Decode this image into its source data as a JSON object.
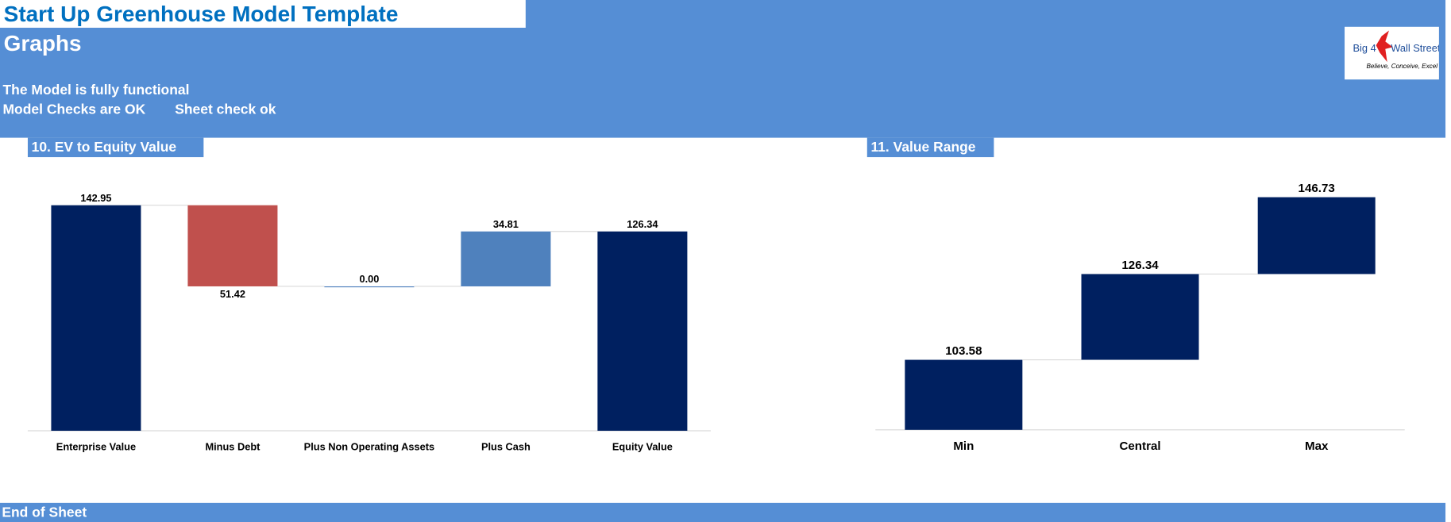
{
  "header": {
    "title": "Start Up Greenhouse Model Template",
    "subtitle": "Graphs",
    "status": "The Model is fully functional",
    "checks": "Model Checks are OK",
    "sheet_check": "Sheet check ok",
    "logo": {
      "left": "Big 4",
      "right": "Wall Street",
      "tagline": "Believe, Conceive, Excel"
    }
  },
  "chart_data": [
    {
      "type": "waterfall",
      "title": "10. EV to Equity Value",
      "categories": [
        "Enterprise Value",
        "Minus Debt",
        "Plus Non Operating Assets",
        "Plus Cash",
        "Equity Value"
      ],
      "values": [
        142.95,
        51.42,
        0,
        34.81,
        126.34
      ],
      "value_labels": [
        "142.95",
        "51.42",
        "0.00",
        "34.81",
        "126.34"
      ],
      "measures": [
        "total",
        "decrease",
        "increase",
        "increase",
        "total"
      ],
      "colors": [
        "#002060",
        "#c0504d",
        "#4f81bd",
        "#4f81bd",
        "#002060"
      ],
      "ylim": [
        0,
        150
      ]
    },
    {
      "type": "step",
      "title": "11. Value Range",
      "categories": [
        "Min",
        "Central",
        "Max"
      ],
      "values": [
        103.58,
        126.34,
        146.73
      ],
      "color": "#002060",
      "ylim": [
        85,
        150
      ]
    }
  ],
  "footer": "End of Sheet"
}
